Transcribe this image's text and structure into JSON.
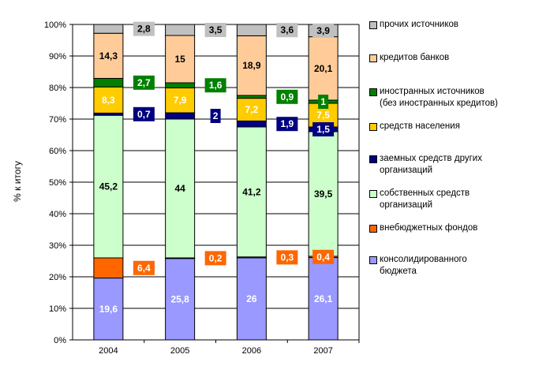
{
  "chart_data": {
    "type": "bar",
    "stacked": true,
    "title": "",
    "xlabel": "",
    "ylabel": "% к итогу",
    "ylim": [
      0,
      100
    ],
    "yticks": [
      "0%",
      "10%",
      "20%",
      "30%",
      "40%",
      "50%",
      "60%",
      "70%",
      "80%",
      "90%",
      "100%"
    ],
    "categories": [
      "2004",
      "2005",
      "2006",
      "2007"
    ],
    "grid": true,
    "legend_position": "right",
    "series": [
      {
        "name": "консолидированного бюджета",
        "color": "#9999FF",
        "label_color": "#FFFFFF",
        "callout": false,
        "values": [
          19.6,
          25.8,
          26,
          26.1
        ],
        "labels": [
          "19,6",
          "25,8",
          "26",
          "26,1"
        ]
      },
      {
        "name": "внебюджетных фондов",
        "color": "#FF6600",
        "label_color": "#FFFFFF",
        "callout": true,
        "values": [
          6.4,
          0.2,
          0.3,
          0.4
        ],
        "labels": [
          "6,4",
          "0,2",
          "0,3",
          "0,4"
        ]
      },
      {
        "name": "собственных средств организаций",
        "color": "#CCFFCC",
        "label_color": "#000000",
        "callout": false,
        "values": [
          45.2,
          44,
          41.2,
          39.5
        ],
        "labels": [
          "45,2",
          "44",
          "41,2",
          "39,5"
        ]
      },
      {
        "name": "заемных средств других организаций",
        "color": "#000080",
        "label_color": "#FFFFFF",
        "callout": true,
        "values": [
          0.7,
          2,
          1.9,
          1.5
        ],
        "labels": [
          "0,7",
          "2",
          "1,9",
          "1,5"
        ]
      },
      {
        "name": "средств населения",
        "color": "#FFCC00",
        "label_color": "#FFFFFF",
        "callout": false,
        "values": [
          8.3,
          7.9,
          7.2,
          7.5
        ],
        "labels": [
          "8,3",
          "7,9",
          "7,2",
          "7,5"
        ]
      },
      {
        "name": "иностранных источников (без иностранных кредитов)",
        "color": "#008000",
        "label_color": "#FFFFFF",
        "callout": true,
        "values": [
          2.7,
          1.6,
          0.9,
          1
        ],
        "labels": [
          "2,7",
          "1,6",
          "0,9",
          "1"
        ]
      },
      {
        "name": "кредитов банков",
        "color": "#FFCC99",
        "label_color": "#000000",
        "callout": false,
        "values": [
          14.3,
          15,
          18.9,
          20.1
        ],
        "labels": [
          "14,3",
          "15",
          "18,9",
          "20,1"
        ]
      },
      {
        "name": "прочих источников",
        "color": "#C0C0C0",
        "label_color": "#000000",
        "callout": true,
        "values": [
          2.8,
          3.5,
          3.6,
          3.9
        ],
        "labels": [
          "2,8",
          "3,5",
          "3,6",
          "3,9"
        ]
      }
    ]
  },
  "legend": [
    {
      "lines": [
        "прочих источников"
      ],
      "color": "#C0C0C0"
    },
    {
      "lines": [
        "кредитов банков"
      ],
      "color": "#FFCC99"
    },
    {
      "lines": [
        "иностранных источников",
        "(без иностранных кредитов)"
      ],
      "color": "#008000"
    },
    {
      "lines": [
        "средств населения"
      ],
      "color": "#FFCC00"
    },
    {
      "lines": [
        "заемных средств других",
        "организаций"
      ],
      "color": "#000080"
    },
    {
      "lines": [
        "собственных средств",
        "организаций"
      ],
      "color": "#CCFFCC"
    },
    {
      "lines": [
        "внебюджетных фондов"
      ],
      "color": "#FF6600"
    },
    {
      "lines": [
        "консолидированного",
        "бюджета"
      ],
      "color": "#9999FF"
    }
  ]
}
